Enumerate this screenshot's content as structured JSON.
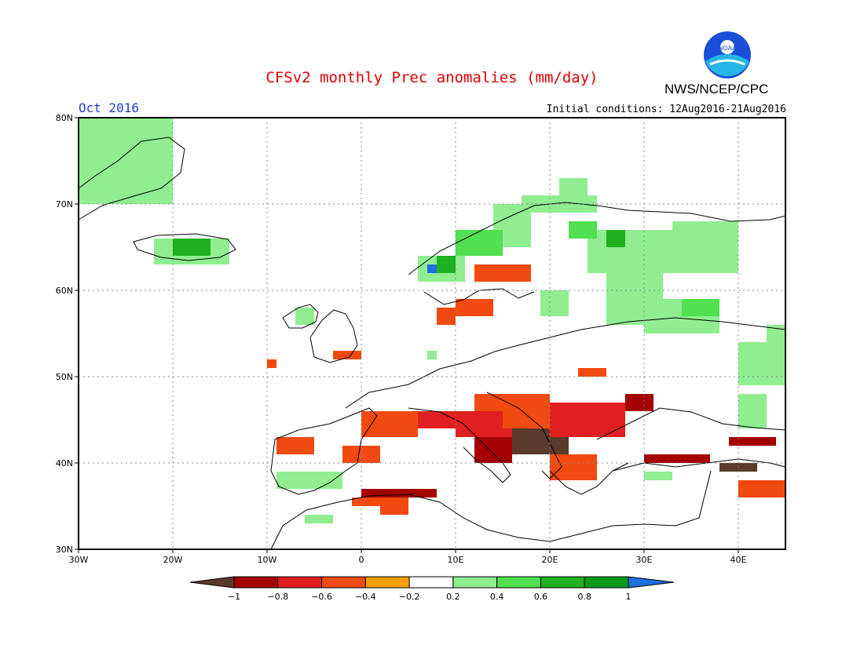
{
  "header": {
    "title": "CFSv2 monthly Prec anomalies (mm/day)",
    "agency": "NWS/NCEP/CPC",
    "logo_text": "NOAA",
    "month": "Oct 2016",
    "initial_conditions": "Initial conditions: 12Aug2016-21Aug2016"
  },
  "map": {
    "region": "Europe",
    "lon_range": [
      -30,
      45
    ],
    "lat_range": [
      30,
      80
    ],
    "lat_ticks": [
      "30N",
      "40N",
      "50N",
      "60N",
      "70N",
      "80N"
    ],
    "lon_ticks": [
      "30W",
      "20W",
      "10W",
      "0",
      "10E",
      "20E",
      "30E",
      "40E"
    ],
    "anomaly_cells": [
      {
        "lon": [
          5,
          13
        ],
        "lat": [
          44,
          46
        ],
        "bin": "-0.6"
      },
      {
        "lon": [
          10,
          20
        ],
        "lat": [
          43,
          46
        ],
        "bin": "-0.6"
      },
      {
        "lon": [
          16,
          22
        ],
        "lat": [
          41,
          44
        ],
        "bin": "-1"
      },
      {
        "lon": [
          15,
          22
        ],
        "lat": [
          44,
          47
        ],
        "bin": "-0.4"
      },
      {
        "lon": [
          20,
          28
        ],
        "lat": [
          43,
          47
        ],
        "bin": "-0.6"
      },
      {
        "lon": [
          12,
          20
        ],
        "lat": [
          46,
          48
        ],
        "bin": "-0.4"
      },
      {
        "lon": [
          28,
          31
        ],
        "lat": [
          46,
          48
        ],
        "bin": "-0.8"
      },
      {
        "lon": [
          0,
          6
        ],
        "lat": [
          43,
          46
        ],
        "bin": "-0.4"
      },
      {
        "lon": [
          -9,
          -5
        ],
        "lat": [
          41,
          43
        ],
        "bin": "-0.4"
      },
      {
        "lon": [
          -2,
          2
        ],
        "lat": [
          40,
          42
        ],
        "bin": "-0.4"
      },
      {
        "lon": [
          0,
          8
        ],
        "lat": [
          36,
          37
        ],
        "bin": "-0.8"
      },
      {
        "lon": [
          -1,
          5
        ],
        "lat": [
          35,
          36
        ],
        "bin": "-0.4"
      },
      {
        "lon": [
          2,
          5
        ],
        "lat": [
          34,
          35
        ],
        "bin": "-0.4"
      },
      {
        "lon": [
          30,
          37
        ],
        "lat": [
          40,
          41
        ],
        "bin": "-0.8"
      },
      {
        "lon": [
          38,
          42
        ],
        "lat": [
          39,
          40
        ],
        "bin": "-1"
      },
      {
        "lon": [
          39,
          44
        ],
        "lat": [
          42,
          43
        ],
        "bin": "-0.8"
      },
      {
        "lon": [
          40,
          45
        ],
        "lat": [
          36,
          38
        ],
        "bin": "-0.4"
      },
      {
        "lon": [
          20,
          25
        ],
        "lat": [
          38,
          41
        ],
        "bin": "-0.4"
      },
      {
        "lon": [
          12,
          16
        ],
        "lat": [
          40,
          43
        ],
        "bin": "-0.8"
      },
      {
        "lon": [
          12,
          18
        ],
        "lat": [
          61,
          63
        ],
        "bin": "-0.4"
      },
      {
        "lon": [
          10,
          14
        ],
        "lat": [
          57,
          59
        ],
        "bin": "-0.4"
      },
      {
        "lon": [
          8,
          10
        ],
        "lat": [
          56,
          58
        ],
        "bin": "-0.4"
      },
      {
        "lon": [
          -3,
          0
        ],
        "lat": [
          52,
          53
        ],
        "bin": "-0.4"
      },
      {
        "lon": [
          -10,
          -9
        ],
        "lat": [
          51,
          52
        ],
        "bin": "-0.4"
      },
      {
        "lon": [
          23,
          26
        ],
        "lat": [
          50,
          51
        ],
        "bin": "-0.4"
      },
      {
        "lon": [
          21,
          24
        ],
        "lat": [
          71,
          73
        ],
        "bin": "0.2"
      },
      {
        "lon": [
          17,
          25
        ],
        "lat": [
          69,
          71
        ],
        "bin": "0.2"
      },
      {
        "lon": [
          24,
          37
        ],
        "lat": [
          62,
          67
        ],
        "bin": "0.2"
      },
      {
        "lon": [
          33,
          40
        ],
        "lat": [
          62,
          68
        ],
        "bin": "0.2"
      },
      {
        "lon": [
          26,
          32
        ],
        "lat": [
          56,
          62
        ],
        "bin": "0.2"
      },
      {
        "lon": [
          30,
          38
        ],
        "lat": [
          55,
          59
        ],
        "bin": "0.2"
      },
      {
        "lon": [
          14,
          18
        ],
        "lat": [
          65,
          70
        ],
        "bin": "0.2"
      },
      {
        "lon": [
          6,
          11
        ],
        "lat": [
          61,
          64
        ],
        "bin": "0.2"
      },
      {
        "lon": [
          10,
          15
        ],
        "lat": [
          64,
          67
        ],
        "bin": "0.4"
      },
      {
        "lon": [
          8,
          10
        ],
        "lat": [
          62,
          64
        ],
        "bin": "0.6"
      },
      {
        "lon": [
          7,
          8
        ],
        "lat": [
          62,
          63
        ],
        "bin": "1"
      },
      {
        "lon": [
          22,
          25
        ],
        "lat": [
          66,
          68
        ],
        "bin": "0.4"
      },
      {
        "lon": [
          26,
          28
        ],
        "lat": [
          65,
          67
        ],
        "bin": "0.6"
      },
      {
        "lon": [
          19,
          22
        ],
        "lat": [
          57,
          60
        ],
        "bin": "0.2"
      },
      {
        "lon": [
          34,
          38
        ],
        "lat": [
          57,
          59
        ],
        "bin": "0.4"
      },
      {
        "lon": [
          40,
          45
        ],
        "lat": [
          49,
          54
        ],
        "bin": "0.2"
      },
      {
        "lon": [
          43,
          45
        ],
        "lat": [
          53,
          56
        ],
        "bin": "0.2"
      },
      {
        "lon": [
          -22,
          -14
        ],
        "lat": [
          63,
          66
        ],
        "bin": "0.2"
      },
      {
        "lon": [
          -20,
          -16
        ],
        "lat": [
          64,
          66
        ],
        "bin": "0.6"
      },
      {
        "lon": [
          -45,
          -20
        ],
        "lat": [
          70,
          80
        ],
        "bin": "0.2"
      },
      {
        "lon": [
          -7,
          -5
        ],
        "lat": [
          56,
          58
        ],
        "bin": "0.2"
      },
      {
        "lon": [
          -9,
          -2
        ],
        "lat": [
          37,
          39
        ],
        "bin": "0.2"
      },
      {
        "lon": [
          -6,
          -3
        ],
        "lat": [
          33,
          34
        ],
        "bin": "0.2"
      },
      {
        "lon": [
          30,
          33
        ],
        "lat": [
          38,
          39
        ],
        "bin": "0.2"
      },
      {
        "lon": [
          40,
          43
        ],
        "lat": [
          44,
          48
        ],
        "bin": "0.2"
      },
      {
        "lon": [
          7,
          8
        ],
        "lat": [
          52,
          53
        ],
        "bin": "0.2"
      }
    ]
  },
  "colorbar": {
    "colors": [
      "#5a3a2a",
      "#a40000",
      "#e02020",
      "#f04a10",
      "#f7a000",
      "#ffffff",
      "#90ee90",
      "#50e050",
      "#20b020",
      "#0a9a1a",
      "#1e6fe0"
    ],
    "labels": [
      "−1",
      "−0.8",
      "−0.6",
      "−0.4",
      "−0.2",
      "0.2",
      "0.4",
      "0.6",
      "0.8",
      "1"
    ]
  }
}
